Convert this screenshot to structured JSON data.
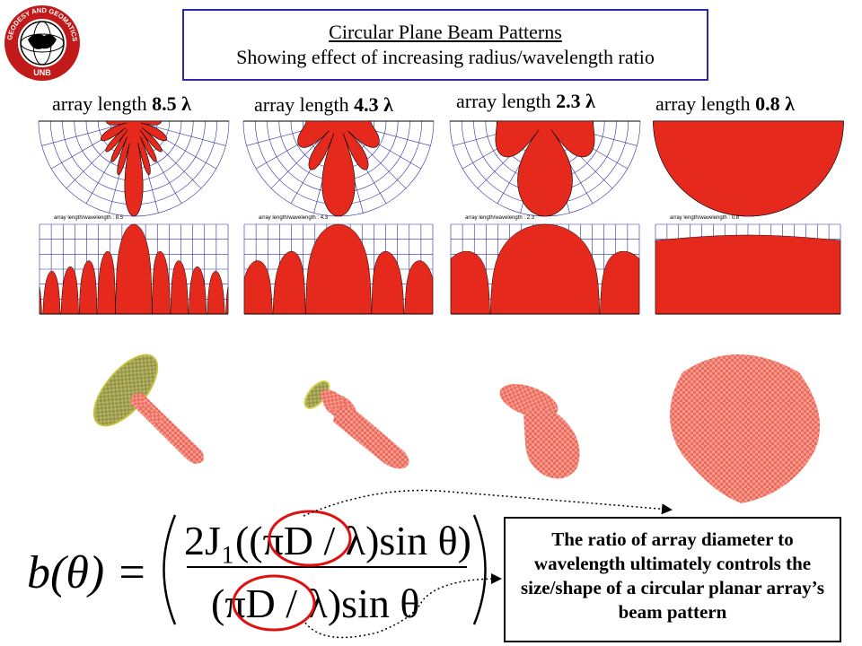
{
  "title": {
    "line1": "Circular Plane Beam Patterns",
    "line2": "Showing effect of increasing radius/wavelength ratio"
  },
  "logo": {
    "text": "GEODESY AND GEOMATICS ENGINEERING · UNB"
  },
  "columns": [
    {
      "prefix": "array length ",
      "value": "8.5 λ",
      "polar_caption": "array length/wavelength : 8.5",
      "cart_caption": "array length/wavelength : 8.5",
      "lobes": 9
    },
    {
      "prefix": "array length ",
      "value": "4.3 λ",
      "polar_caption": "array length/wavelength : 4.3",
      "cart_caption": "array length/wavelength : 4.3",
      "lobes": 5
    },
    {
      "prefix": "array length ",
      "value": "2.3 λ",
      "polar_caption": "array length/wavelength : 2.3",
      "cart_caption": "array length/wavelength : 2.3",
      "lobes": 3
    },
    {
      "prefix": "array length ",
      "value": "0.8 λ",
      "polar_caption": "array length/wavelength : 0.8",
      "cart_caption": "array length/wavelength : 0.8",
      "lobes": 1
    }
  ],
  "formula": {
    "lhs": "b(θ) =",
    "numerator": "2J₁((πD / λ)sin θ)",
    "denominator": "(πD / λ)sin θ"
  },
  "note": {
    "text": "The ratio of array diameter to wavelength ultimately controls the size/shape of a circular planar array’s beam pattern"
  },
  "colors": {
    "beam": "#e52a1d",
    "grid": "#3030a0",
    "title_border": "#2a2aa8",
    "highlight": "#e01010",
    "disc": "#8a9a4a"
  }
}
